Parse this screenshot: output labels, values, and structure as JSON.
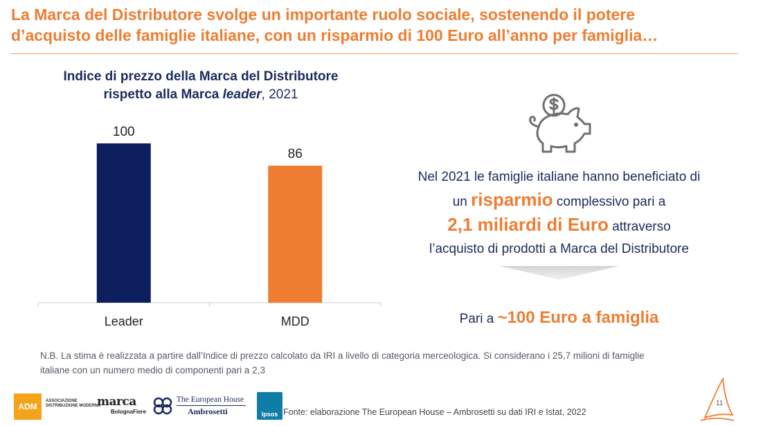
{
  "headline": {
    "line1": "La Marca del Distributore svolge un importante ruolo sociale, sostenendo il potere",
    "line2": "d’acquisto delle famiglie italiane, con un risparmio di 100 Euro all’anno per famiglia…"
  },
  "chart_data": {
    "type": "bar",
    "title_part1": "Indice di prezzo della Marca del Distributore",
    "title_part2": "rispetto alla Marca ",
    "title_italic": "leader",
    "title_part3": ", 2021",
    "categories": [
      "Leader",
      "MDD"
    ],
    "values": [
      100,
      86
    ],
    "data_labels": [
      "100",
      "86"
    ],
    "colors": [
      "#0d1f5c",
      "#ee7d31"
    ],
    "ylim": [
      0,
      100
    ],
    "grid": false,
    "legend": "none"
  },
  "infographic": {
    "icon": "piggy-bank-dollar-icon",
    "stmt_line1": "Nel 2021 le famiglie italiane hanno beneficiato di",
    "stmt_line2_pre": "un ",
    "stmt_line2_hl": "risparmio",
    "stmt_line2_post": " complessivo pari a",
    "stmt_line3_hl": "2,1 miliardi di Euro",
    "stmt_line3_post": " attraverso",
    "stmt_line4": "l’acquisto di prodotti a Marca del Distributore",
    "result_pre": "Pari a ",
    "result_hl": "~100 Euro a famiglia"
  },
  "note": {
    "line1": "N.B. La stima è realizzata a partire dall’Indice di prezzo calcolato da IRI a livello di categoria merceologica. Si considerano i 25,7 milioni di famiglie",
    "line2": "italiane con un numero medio di componenti pari a 2,3"
  },
  "footer": {
    "adm_logo": "ADM",
    "adm_text_1": "ASSOCIAZIONE",
    "adm_text_2": "DISTRIBUZIONE MODERNA",
    "marca_logo": "marca",
    "marca_sub": "BolognaFiere",
    "teh_line1": "The European House",
    "teh_line2": "Ambrosetti",
    "ipsos_logo": "Ipsos",
    "source": "Fonte: elaborazione The European House – Ambrosetti su dati IRI e Istat, 2022",
    "page_number": "11"
  },
  "colors": {
    "accent": "#ee7d31",
    "navy": "#1b2a5c"
  }
}
